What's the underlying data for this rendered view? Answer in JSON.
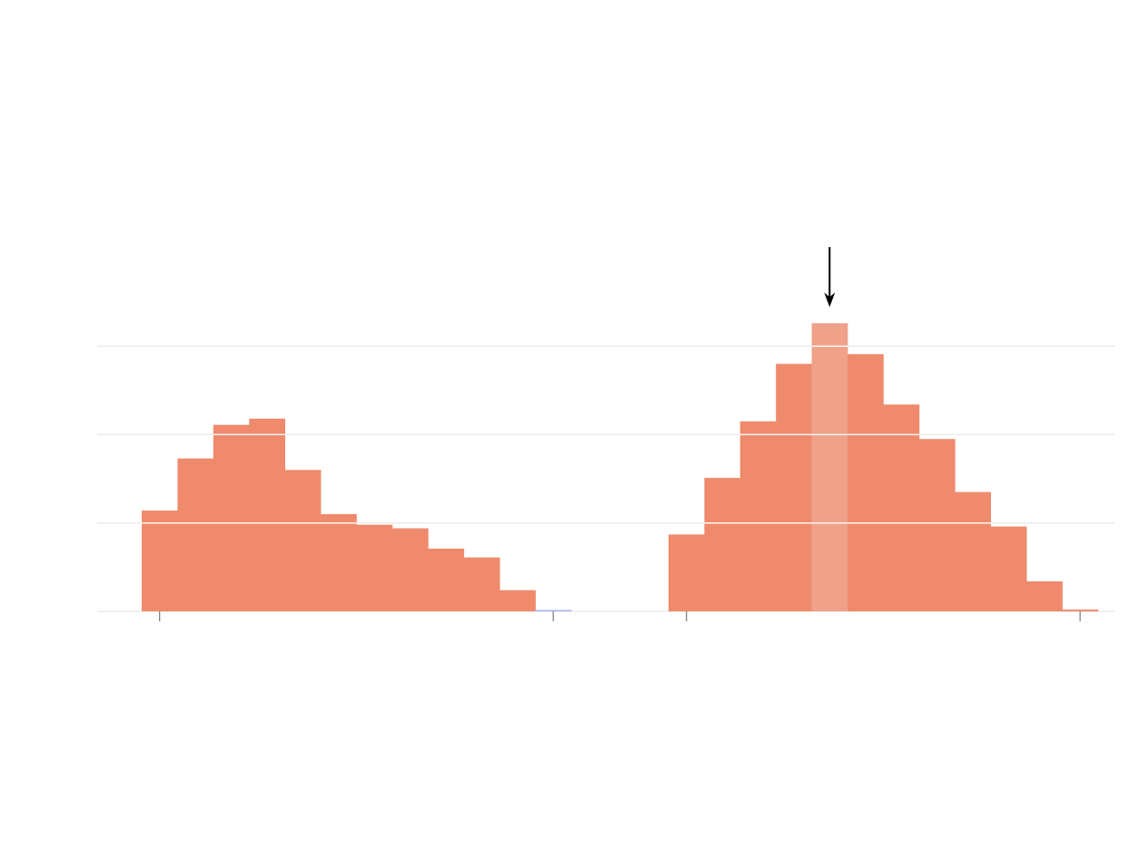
{
  "chart_data": {
    "type": "bar",
    "title": "",
    "xlabel": "",
    "ylabel": "",
    "ylim": [
      0,
      3.3
    ],
    "grid": true,
    "gridlines_y": [
      1,
      2,
      3
    ],
    "panels": [
      {
        "values": [
          1.14,
          1.73,
          2.11,
          2.18,
          1.6,
          1.1,
          0.98,
          0.94,
          0.71,
          0.61,
          0.24,
          0.01
        ],
        "colors": [
          "#ef8a6d",
          "#ef8a6d",
          "#ef8a6d",
          "#ef8a6d",
          "#ef8a6d",
          "#ef8a6d",
          "#ef8a6d",
          "#ef8a6d",
          "#ef8a6d",
          "#ef8a6d",
          "#ef8a6d",
          "#aab4f0"
        ],
        "tick_bins": [
          0,
          11
        ]
      },
      {
        "values": [
          0.87,
          1.51,
          2.15,
          2.8,
          3.26,
          2.91,
          2.34,
          1.95,
          1.35,
          0.96,
          0.34,
          0.02
        ],
        "colors": [
          "#ef8a6d",
          "#ef8a6d",
          "#ef8a6d",
          "#ef8a6d",
          "#f0a18a",
          "#ef8a6d",
          "#ef8a6d",
          "#ef8a6d",
          "#ef8a6d",
          "#ef8a6d",
          "#ef8a6d",
          "#ef8a6d"
        ],
        "tick_bins": [
          0,
          11
        ],
        "highlighted_bin": 4,
        "arrow_marker_bin": 4
      }
    ],
    "colors": {
      "bar": "#ef8a6d",
      "highlight": "#f0a18a",
      "grid": "#ebebeb",
      "axis_tick": "#777777",
      "arrow": "#000000"
    }
  }
}
